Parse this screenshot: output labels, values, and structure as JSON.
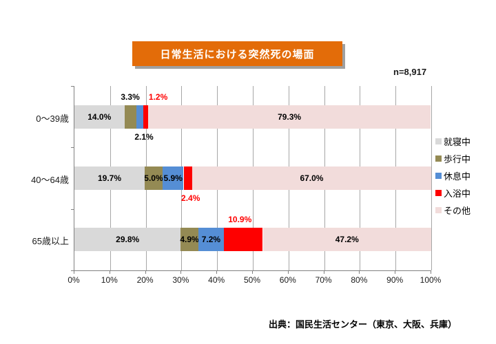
{
  "colors": {
    "title_bg": "#E36C09",
    "title_text": "#FFFFFF",
    "title_shadow": "#A0A0A0",
    "grid": "#A6A6A6",
    "axis": "#808080",
    "value_label": "#000000",
    "bath_label_red": "#FF0000"
  },
  "chart_data": {
    "type": "bar",
    "stacked": true,
    "orientation": "horizontal",
    "title": "日常生活における突然死の場面",
    "sample_size_label": "n=8,917",
    "categories": [
      "0〜39歳",
      "40〜64歳",
      "65歳以上"
    ],
    "series": [
      {
        "name": "就寝中",
        "color": "#D9D9D9",
        "values": [
          14.0,
          19.7,
          29.8
        ]
      },
      {
        "name": "歩行中",
        "color": "#948A54",
        "values": [
          3.3,
          5.0,
          4.9
        ]
      },
      {
        "name": "休息中",
        "color": "#558ED5",
        "values": [
          2.1,
          5.9,
          7.2
        ]
      },
      {
        "name": "入浴中",
        "color": "#FE0000",
        "label_color": "#FF0000",
        "values": [
          1.2,
          2.4,
          10.9
        ]
      },
      {
        "name": "その他",
        "color": "#F2DCDB",
        "values": [
          79.3,
          67.0,
          47.2
        ]
      }
    ],
    "xlim": [
      0,
      100
    ],
    "x_ticks": [
      "0%",
      "10%",
      "20%",
      "30%",
      "40%",
      "50%",
      "60%",
      "70%",
      "80%",
      "90%",
      "100%"
    ],
    "grid": true,
    "legend_position": "right",
    "label_positions": [
      [
        "inside",
        "above",
        "below",
        "above",
        "inside"
      ],
      [
        "inside",
        "inside",
        "inside",
        "below",
        "inside"
      ],
      [
        "inside",
        "inside",
        "inside",
        "above",
        "inside"
      ]
    ],
    "label_dx": [
      [
        0,
        0,
        6,
        18,
        0
      ],
      [
        0,
        0,
        0,
        4,
        0
      ],
      [
        0,
        0,
        0,
        -5,
        0
      ]
    ],
    "source": "出典：国民生活センター（東京、大阪、兵庫）"
  }
}
